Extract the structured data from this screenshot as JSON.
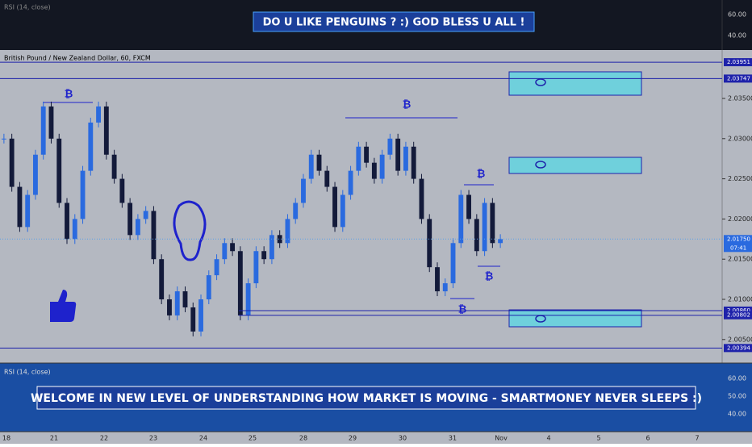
{
  "top_panel": {
    "label": "RSI (14, close)",
    "banner": "DO U LIKE PENGUINS ? :) GOD BLESS U ALL !",
    "axis": [
      "60.00",
      "40.00"
    ]
  },
  "chart": {
    "symbol": "British Pound / New Zealand Dollar, 60, FXCM",
    "price_ticks": [
      {
        "value": 2.035,
        "label": "2.03500"
      },
      {
        "value": 2.03,
        "label": "2.03000"
      },
      {
        "value": 2.025,
        "label": "2.02500"
      },
      {
        "value": 2.02,
        "label": "2.02000"
      },
      {
        "value": 2.015,
        "label": "2.01500"
      },
      {
        "value": 2.01,
        "label": "2.01000"
      },
      {
        "value": 2.005,
        "label": "2.00500"
      }
    ],
    "levels": [
      {
        "value": 2.03951,
        "label": "2.03951"
      },
      {
        "value": 2.03747,
        "label": "2.03747"
      },
      {
        "value": 2.0086,
        "label": "2.00860"
      },
      {
        "value": 2.00802,
        "label": "2.00802"
      },
      {
        "value": 2.00394,
        "label": "2.00394"
      }
    ],
    "current_price": {
      "value": 2.0175,
      "label": "2.01750"
    },
    "countdown": "07:41",
    "marker": "₿",
    "prices": [
      2.03,
      2.024,
      2.019,
      2.023,
      2.028,
      2.034,
      2.03,
      2.022,
      2.0175,
      2.02,
      2.026,
      2.032,
      2.034,
      2.028,
      2.025,
      2.022,
      2.018,
      2.02,
      2.021,
      2.015,
      2.01,
      2.008,
      2.011,
      2.009,
      2.006,
      2.01,
      2.013,
      2.015,
      2.017,
      2.016,
      2.008,
      2.012,
      2.016,
      2.015,
      2.018,
      2.017,
      2.02,
      2.022,
      2.025,
      2.028,
      2.026,
      2.024,
      2.019,
      2.023,
      2.026,
      2.029,
      2.027,
      2.025,
      2.028,
      2.03,
      2.026,
      2.029,
      2.025,
      2.02,
      2.014,
      2.011,
      2.012,
      2.017,
      2.023,
      2.02,
      2.016,
      2.022,
      2.017,
      2.0175
    ]
  },
  "bottom_panel": {
    "label": "RSI (14, close)",
    "banner": "WELCOME IN NEW LEVEL OF UNDERSTANDING HOW MARKET IS MOVING - SMARTMONEY NEVER SLEEPS :)",
    "axis": [
      "60.00",
      "50.00",
      "40.00"
    ]
  },
  "time_axis": [
    "18",
    "21",
    "22",
    "23",
    "24",
    "25",
    "28",
    "29",
    "30",
    "31",
    "Nov",
    "4",
    "5",
    "6",
    "7"
  ]
}
